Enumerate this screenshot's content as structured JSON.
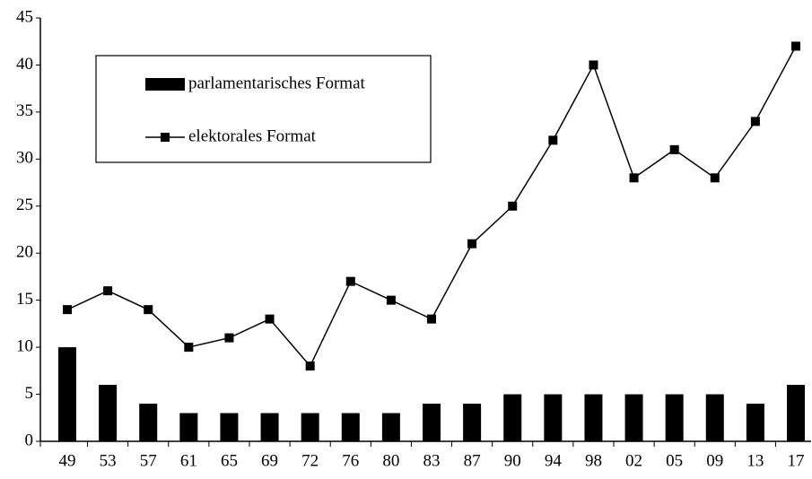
{
  "chart_data": {
    "type": "bar",
    "categories": [
      "49",
      "53",
      "57",
      "61",
      "65",
      "69",
      "72",
      "76",
      "80",
      "83",
      "87",
      "90",
      "94",
      "98",
      "02",
      "05",
      "09",
      "13",
      "17"
    ],
    "series": [
      {
        "name": "parlamentarisches Format",
        "type": "bar",
        "color": "#000000",
        "values": [
          10,
          6,
          4,
          3,
          3,
          3,
          3,
          3,
          3,
          4,
          4,
          5,
          5,
          5,
          5,
          5,
          5,
          4,
          6
        ]
      },
      {
        "name": "elektorales Format",
        "type": "line",
        "color": "#000000",
        "values": [
          14,
          16,
          14,
          10,
          11,
          13,
          8,
          17,
          15,
          13,
          21,
          25,
          32,
          40,
          28,
          31,
          28,
          34,
          42
        ]
      }
    ],
    "ylim": [
      0,
      45
    ],
    "yticks": [
      0,
      5,
      10,
      15,
      20,
      25,
      30,
      35,
      40,
      45
    ],
    "grid": false,
    "legend": "upper left"
  }
}
